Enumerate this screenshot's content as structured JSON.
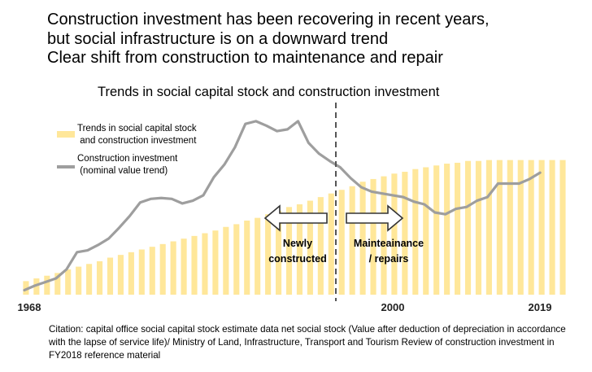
{
  "headline": {
    "line1": "Construction investment has been recovering in recent years,",
    "line2": "but social infrastructure is on a downward trend",
    "line3": "Clear shift from construction to maintenance and repair"
  },
  "citation": "Citation: capital office social capital stock estimate data net social stock (Value after deduction of depreciation in accordance with the lapse of service life)/ Ministry of Land, Infrastructure, Transport and Tourism Review of construction investment in FY2018 reference material",
  "colors": {
    "bar": "#FFE79A",
    "line": "#9E9E9E",
    "arrow": "#333333",
    "divider": "#555555"
  },
  "chart_data": {
    "type": "bar",
    "title": "Trends in social capital stock and construction investment",
    "x_tick_labels": [
      "1968",
      "2000",
      "2019"
    ],
    "years": [
      1968,
      1969,
      1970,
      1971,
      1972,
      1973,
      1974,
      1975,
      1976,
      1977,
      1978,
      1979,
      1980,
      1981,
      1982,
      1983,
      1984,
      1985,
      1986,
      1987,
      1988,
      1989,
      1990,
      1991,
      1992,
      1993,
      1994,
      1995,
      1996,
      1997,
      1998,
      1999,
      2000,
      2001,
      2002,
      2003,
      2004,
      2005,
      2006,
      2007,
      2008,
      2009,
      2010,
      2011,
      2012,
      2013,
      2014,
      2015,
      2016,
      2017,
      2018,
      2019
    ],
    "series": [
      {
        "name": "Trends in social capital stock and construction investment",
        "type": "bar",
        "values": [
          15,
          18,
          21,
          24,
          28,
          31,
          34,
          37,
          41,
          44,
          47,
          50,
          53,
          56,
          59,
          62,
          65,
          68,
          71,
          75,
          78,
          82,
          85,
          89,
          93,
          97,
          100,
          104,
          108,
          112,
          116,
          120,
          125,
          128,
          131,
          134,
          136,
          139,
          141,
          143,
          145,
          146,
          148,
          148,
          149,
          149,
          149,
          149,
          149,
          149,
          149,
          149
        ]
      },
      {
        "name": "Construction investment\n(nominal value trend)",
        "type": "line",
        "values": [
          5,
          10,
          14,
          18,
          28,
          47,
          49,
          55,
          62,
          74,
          87,
          102,
          106,
          107,
          106,
          101,
          104,
          110,
          130,
          144,
          163,
          189,
          192,
          187,
          181,
          183,
          192,
          168,
          156,
          148,
          141,
          129,
          119,
          114,
          112,
          110,
          108,
          103,
          100,
          91,
          89,
          95,
          97,
          104,
          108,
          123,
          123,
          123,
          128,
          135
        ]
      }
    ],
    "line_years": [
      1968,
      1969,
      1970,
      1971,
      1972,
      1973,
      1974,
      1975,
      1976,
      1977,
      1978,
      1979,
      1980,
      1981,
      1982,
      1983,
      1984,
      1985,
      1986,
      1987,
      1988,
      1989,
      1990,
      1991,
      1992,
      1993,
      1994,
      1995,
      1996,
      1997,
      1998,
      1999,
      2000,
      2001,
      2002,
      2003,
      2004,
      2005,
      2006,
      2007,
      2008,
      2009,
      2010,
      2011,
      2012,
      2013,
      2014,
      2015,
      2016,
      2017
    ],
    "divider_year": 1994,
    "annotations": {
      "left": "Newly\nconstructed",
      "right": "Mainteainance\n/ repairs"
    },
    "ylim": [
      0,
      200
    ]
  }
}
